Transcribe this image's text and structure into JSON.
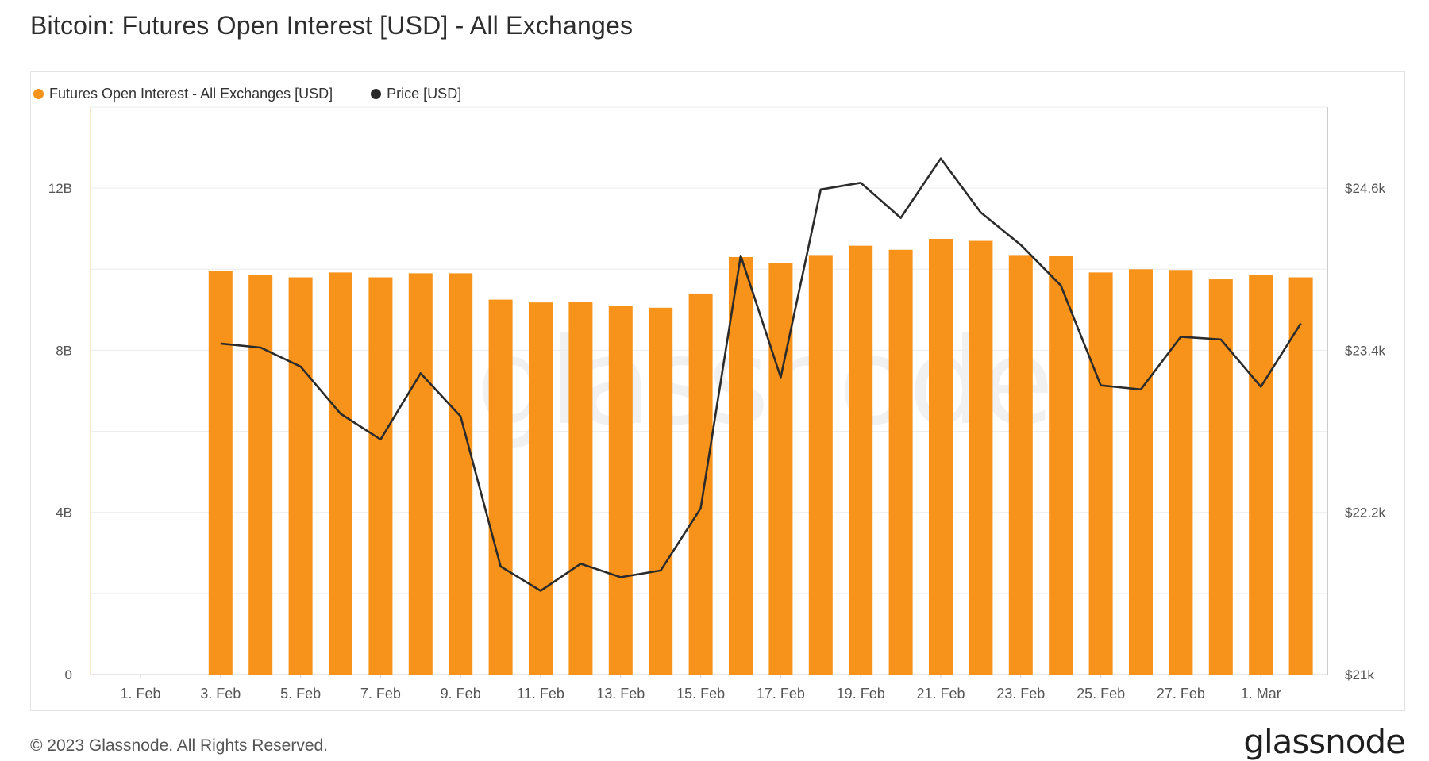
{
  "title": "Bitcoin: Futures Open Interest [USD] - All Exchanges",
  "legend": [
    {
      "label": "Futures Open Interest - All Exchanges [USD]",
      "color": "#f7931a"
    },
    {
      "label": "Price [USD]",
      "color": "#2b2b2b"
    }
  ],
  "watermark": "glassnode",
  "footer": "© 2023 Glassnode. All Rights Reserved.",
  "logo": "glassnode",
  "chart_data": {
    "type": "bar",
    "x_ticks": [
      "1. Feb",
      "3. Feb",
      "5. Feb",
      "7. Feb",
      "9. Feb",
      "11. Feb",
      "13. Feb",
      "15. Feb",
      "17. Feb",
      "19. Feb",
      "21. Feb",
      "23. Feb",
      "25. Feb",
      "27. Feb",
      "1. Mar"
    ],
    "y_left_ticks": [
      "0",
      "4B",
      "8B",
      "12B"
    ],
    "y_left_tick_values": [
      0,
      4,
      8,
      12
    ],
    "y_left_range": [
      0,
      14
    ],
    "y_right_ticks": [
      "$21k",
      "$22.2k",
      "$23.4k",
      "$24.6k"
    ],
    "y_right_tick_values": [
      21000,
      22200,
      23400,
      24600
    ],
    "y_right_range": [
      21000,
      25200
    ],
    "grid": true,
    "series": [
      {
        "name": "Futures Open Interest - All Exchanges [USD]",
        "type": "bar",
        "axis": "left",
        "x": [
          "2023-02-03",
          "2023-02-04",
          "2023-02-05",
          "2023-02-06",
          "2023-02-07",
          "2023-02-08",
          "2023-02-09",
          "2023-02-10",
          "2023-02-11",
          "2023-02-12",
          "2023-02-13",
          "2023-02-14",
          "2023-02-15",
          "2023-02-16",
          "2023-02-17",
          "2023-02-18",
          "2023-02-19",
          "2023-02-20",
          "2023-02-21",
          "2023-02-22",
          "2023-02-23",
          "2023-02-24",
          "2023-02-25",
          "2023-02-26",
          "2023-02-27",
          "2023-02-28",
          "2023-03-01",
          "2023-03-02"
        ],
        "values": [
          9.95,
          9.85,
          9.8,
          9.92,
          9.8,
          9.9,
          9.9,
          9.25,
          9.18,
          9.2,
          9.1,
          9.05,
          9.4,
          10.3,
          10.15,
          10.35,
          10.58,
          10.48,
          10.75,
          10.7,
          10.35,
          10.32,
          9.92,
          10.0,
          9.98,
          9.75,
          9.85,
          9.8
        ]
      },
      {
        "name": "Price [USD]",
        "type": "line",
        "axis": "right",
        "x": [
          "2023-02-03",
          "2023-02-04",
          "2023-02-05",
          "2023-02-06",
          "2023-02-07",
          "2023-02-08",
          "2023-02-09",
          "2023-02-10",
          "2023-02-11",
          "2023-02-12",
          "2023-02-13",
          "2023-02-14",
          "2023-02-15",
          "2023-02-16",
          "2023-02-17",
          "2023-02-18",
          "2023-02-19",
          "2023-02-20",
          "2023-02-21",
          "2023-02-22",
          "2023-02-23",
          "2023-02-24",
          "2023-02-25",
          "2023-02-26",
          "2023-02-27",
          "2023-02-28",
          "2023-03-01",
          "2023-03-02"
        ],
        "values": [
          23450,
          23420,
          23280,
          22930,
          22740,
          23230,
          22910,
          21800,
          21620,
          21820,
          21720,
          21770,
          22230,
          24100,
          23200,
          24590,
          24640,
          24380,
          24820,
          24420,
          24180,
          23880,
          23140,
          23110,
          23500,
          23480,
          23130,
          23600
        ]
      }
    ]
  }
}
